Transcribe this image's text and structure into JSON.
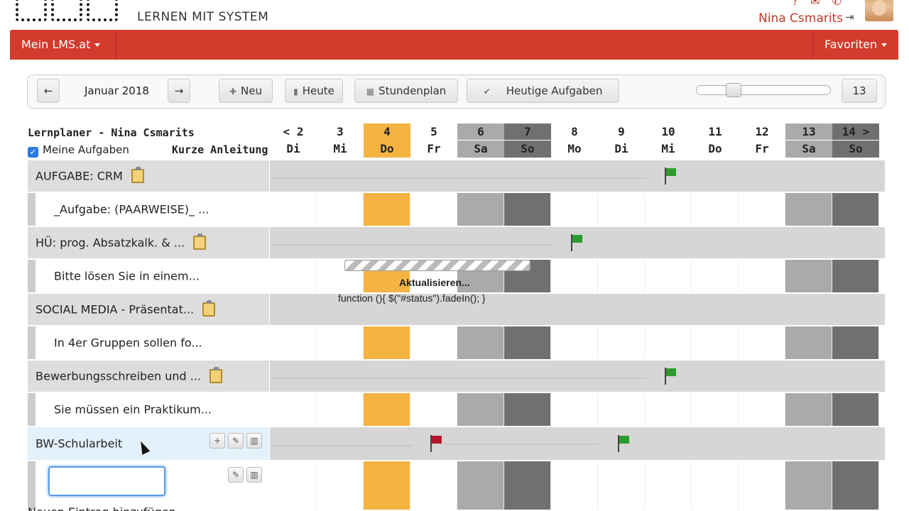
{
  "header": {
    "tagline": "LERNEN MIT SYSTEM",
    "user_name": "Nina Csmarits",
    "icons": [
      "help-icon",
      "mail-icon",
      "phone-icon",
      "logout-icon"
    ]
  },
  "nav": {
    "left_label": "Mein LMS.at",
    "right_label": "Favoriten"
  },
  "toolbar": {
    "prev": "←",
    "month": "Januar 2018",
    "next": "→",
    "new_label": "Neu",
    "today_label": "Heute",
    "schedule_label": "Stundenplan",
    "today_tasks_label": "Heutige Aufgaben",
    "zoom_value": "13",
    "slider_fraction": 0.22
  },
  "planner": {
    "title": "Lernplaner - Nina Csmarits",
    "my_tasks_label": "Meine Aufgaben",
    "short_guide_label": "Kurze Anleitung",
    "days": [
      {
        "n": "< 2",
        "w": "Di",
        "type": "normal"
      },
      {
        "n": "3",
        "w": "Mi",
        "type": "normal"
      },
      {
        "n": "4",
        "w": "Do",
        "type": "today"
      },
      {
        "n": "5",
        "w": "Fr",
        "type": "normal"
      },
      {
        "n": "6",
        "w": "Sa",
        "type": "sat"
      },
      {
        "n": "7",
        "w": "So",
        "type": "sun"
      },
      {
        "n": "8",
        "w": "Mo",
        "type": "normal"
      },
      {
        "n": "9",
        "w": "Di",
        "type": "normal"
      },
      {
        "n": "10",
        "w": "Mi",
        "type": "normal"
      },
      {
        "n": "11",
        "w": "Do",
        "type": "normal"
      },
      {
        "n": "12",
        "w": "Fr",
        "type": "normal"
      },
      {
        "n": "13",
        "w": "Sa",
        "type": "sat"
      },
      {
        "n": "14 >",
        "w": "So",
        "type": "sun"
      }
    ],
    "rows": [
      {
        "kind": "group",
        "label": "AUFGABE: CRM",
        "clip": true,
        "flag_day": 8,
        "flag_color": "#2e9b2e"
      },
      {
        "kind": "sub",
        "label": "_Aufgabe: (PAARWEISE)_ ..."
      },
      {
        "kind": "group",
        "label": "HÜ: prog. Absatzkalk. & ...",
        "clip": true,
        "flag_day": 6,
        "flag_color": "#2e9b2e"
      },
      {
        "kind": "sub",
        "label": "Bitte lösen Sie in einem..."
      },
      {
        "kind": "group",
        "label": "SOCIAL MEDIA - Präsentat...",
        "clip": true
      },
      {
        "kind": "sub",
        "label": "In 4er Gruppen sollen fo..."
      },
      {
        "kind": "group",
        "label": "Bewerbungsschreiben und ...",
        "clip": true,
        "flag_day": 8,
        "flag_color": "#2e9b2e"
      },
      {
        "kind": "sub",
        "label": "Sie müssen ein Praktikum..."
      },
      {
        "kind": "group",
        "label": "BW-Schularbeit",
        "hover": true,
        "flag_day": 3,
        "flag_color": "#b3142a",
        "flag2_day": 7,
        "flag2_color": "#2e9b2e"
      },
      {
        "kind": "sub",
        "label": "",
        "editing": true
      }
    ]
  },
  "status": {
    "text": "Aktualisieren...",
    "code": "function (){ $(\"#status\").fadeIn(); }"
  },
  "footer": {
    "text": "Neuen Eintrag hinzufügen"
  },
  "colors": {
    "brand": "#d33b2c",
    "today": "#f5b342",
    "saturday": "#aaaaaa",
    "sunday": "#707070"
  }
}
